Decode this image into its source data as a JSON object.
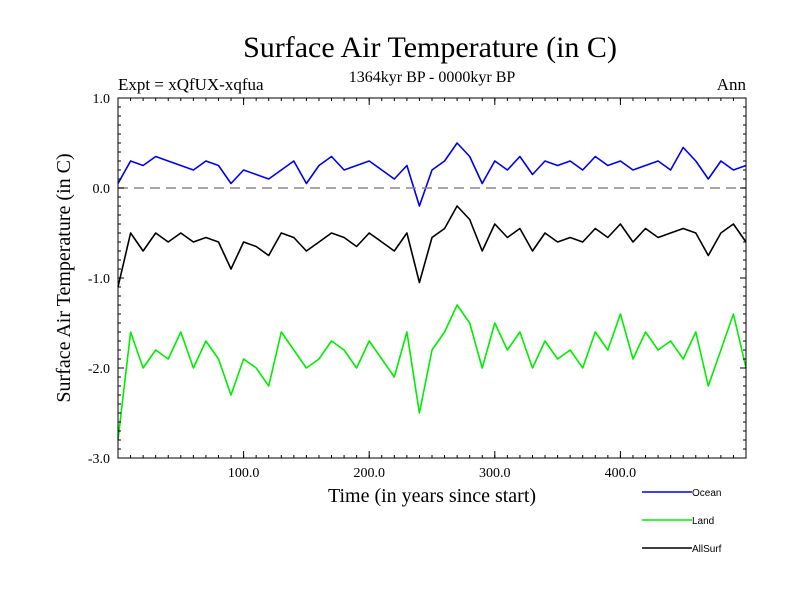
{
  "chart_data": {
    "type": "line",
    "title": "Surface Air Temperature (in C)",
    "subtitle": "1364kyr BP - 0000kyr BP",
    "experiment_label": "Expt = xQfUX-xqfua",
    "season_label": "Ann",
    "xlabel": "Time (in years since start)",
    "ylabel": "Surface Air Temperature (in C)",
    "xlim": [
      0,
      500
    ],
    "ylim": [
      -3.0,
      1.0
    ],
    "x_ticks": [
      100,
      200,
      300,
      400
    ],
    "x_tick_labels": [
      "100.0",
      "200.0",
      "300.0",
      "400.0"
    ],
    "y_ticks": [
      -3.0,
      -2.0,
      -1.0,
      0.0,
      1.0
    ],
    "y_tick_labels": [
      "-3.0",
      "-2.0",
      "-1.0",
      "0.0",
      "1.0"
    ],
    "reference_line": {
      "y": 0.0,
      "style": "dashed",
      "color": "#888888"
    },
    "legend_position": "bottom-right",
    "series": [
      {
        "name": "Ocean",
        "color": "#0000ee",
        "x": [
          0,
          10,
          20,
          30,
          40,
          50,
          60,
          70,
          80,
          90,
          100,
          110,
          120,
          130,
          140,
          150,
          160,
          170,
          180,
          190,
          200,
          210,
          220,
          230,
          240,
          250,
          260,
          270,
          280,
          290,
          300,
          310,
          320,
          330,
          340,
          350,
          360,
          370,
          380,
          390,
          400,
          410,
          420,
          430,
          440,
          450,
          460,
          470,
          480,
          490,
          500
        ],
        "values": [
          0.05,
          0.3,
          0.25,
          0.35,
          0.3,
          0.25,
          0.2,
          0.3,
          0.25,
          0.05,
          0.2,
          0.15,
          0.1,
          0.2,
          0.3,
          0.05,
          0.25,
          0.35,
          0.2,
          0.25,
          0.3,
          0.2,
          0.1,
          0.25,
          -0.2,
          0.2,
          0.3,
          0.5,
          0.35,
          0.05,
          0.3,
          0.2,
          0.35,
          0.15,
          0.3,
          0.25,
          0.3,
          0.2,
          0.35,
          0.25,
          0.3,
          0.2,
          0.25,
          0.3,
          0.2,
          0.45,
          0.3,
          0.1,
          0.3,
          0.2,
          0.25
        ]
      },
      {
        "name": "Land",
        "color": "#00ee00",
        "x": [
          0,
          10,
          20,
          30,
          40,
          50,
          60,
          70,
          80,
          90,
          100,
          110,
          120,
          130,
          140,
          150,
          160,
          170,
          180,
          190,
          200,
          210,
          220,
          230,
          240,
          250,
          260,
          270,
          280,
          290,
          300,
          310,
          320,
          330,
          340,
          350,
          360,
          370,
          380,
          390,
          400,
          410,
          420,
          430,
          440,
          450,
          460,
          470,
          480,
          490,
          500
        ],
        "values": [
          -2.8,
          -1.6,
          -2.0,
          -1.8,
          -1.9,
          -1.6,
          -2.0,
          -1.7,
          -1.9,
          -2.3,
          -1.9,
          -2.0,
          -2.2,
          -1.6,
          -1.8,
          -2.0,
          -1.9,
          -1.7,
          -1.8,
          -2.0,
          -1.7,
          -1.9,
          -2.1,
          -1.6,
          -2.5,
          -1.8,
          -1.6,
          -1.3,
          -1.5,
          -2.0,
          -1.5,
          -1.8,
          -1.6,
          -2.0,
          -1.7,
          -1.9,
          -1.8,
          -2.0,
          -1.6,
          -1.8,
          -1.4,
          -1.9,
          -1.6,
          -1.8,
          -1.7,
          -1.9,
          -1.6,
          -2.2,
          -1.8,
          -1.4,
          -2.0
        ]
      },
      {
        "name": "AllSurf",
        "color": "#000000",
        "x": [
          0,
          10,
          20,
          30,
          40,
          50,
          60,
          70,
          80,
          90,
          100,
          110,
          120,
          130,
          140,
          150,
          160,
          170,
          180,
          190,
          200,
          210,
          220,
          230,
          240,
          250,
          260,
          270,
          280,
          290,
          300,
          310,
          320,
          330,
          340,
          350,
          360,
          370,
          380,
          390,
          400,
          410,
          420,
          430,
          440,
          450,
          460,
          470,
          480,
          490,
          500
        ],
        "values": [
          -1.1,
          -0.5,
          -0.7,
          -0.5,
          -0.6,
          -0.5,
          -0.6,
          -0.55,
          -0.6,
          -0.9,
          -0.6,
          -0.65,
          -0.75,
          -0.5,
          -0.55,
          -0.7,
          -0.6,
          -0.5,
          -0.55,
          -0.65,
          -0.5,
          -0.6,
          -0.7,
          -0.5,
          -1.05,
          -0.55,
          -0.45,
          -0.2,
          -0.35,
          -0.7,
          -0.4,
          -0.55,
          -0.45,
          -0.7,
          -0.5,
          -0.6,
          -0.55,
          -0.6,
          -0.45,
          -0.55,
          -0.4,
          -0.6,
          -0.45,
          -0.55,
          -0.5,
          -0.45,
          -0.5,
          -0.75,
          -0.5,
          -0.4,
          -0.6
        ]
      }
    ]
  }
}
